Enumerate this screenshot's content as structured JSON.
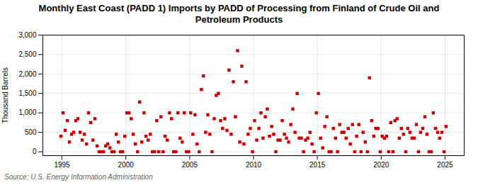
{
  "chart_data": {
    "type": "scatter",
    "title": "Monthly East Coast (PADD 1) Imports by PADD of Processing from Finland of Crude Oil and\nPetroleum Products",
    "ylabel": "Thousand Barrels",
    "source": "Source: U.S. Energy Information Administration",
    "color": "#cc0000",
    "marker": "square",
    "grid": true,
    "xlim": [
      1993.5,
      2026.5
    ],
    "ylim": [
      -100,
      3000
    ],
    "xticks": [
      1995,
      2000,
      2005,
      2010,
      2015,
      2020,
      2025
    ],
    "yticks": [
      0,
      500,
      {
        "value": 1000,
        "label": "1,000"
      },
      {
        "value": 1500,
        "label": "1,500"
      },
      {
        "value": 2000,
        "label": "2,000"
      },
      {
        "value": 2500,
        "label": "2,500"
      },
      {
        "value": 3000,
        "label": "3,000"
      }
    ],
    "x": [
      1994.92,
      1995.08,
      1995.25,
      1995.42,
      1995.58,
      1995.75,
      1995.92,
      1996.08,
      1996.25,
      1996.42,
      1996.58,
      1996.75,
      1996.92,
      1997.08,
      1997.25,
      1997.42,
      1997.58,
      1997.75,
      1997.92,
      1998.08,
      1998.25,
      1998.42,
      1998.58,
      1998.75,
      1998.92,
      1999.08,
      1999.25,
      1999.42,
      1999.58,
      1999.75,
      1999.92,
      2000.08,
      2000.25,
      2000.42,
      2000.58,
      2000.75,
      2000.92,
      2001.08,
      2001.25,
      2001.42,
      2001.58,
      2001.75,
      2001.92,
      2002.08,
      2002.25,
      2002.42,
      2002.58,
      2002.75,
      2002.92,
      2003.08,
      2003.25,
      2003.42,
      2003.58,
      2003.75,
      2003.92,
      2004.08,
      2004.25,
      2004.42,
      2004.58,
      2004.75,
      2004.92,
      2005.08,
      2005.25,
      2005.42,
      2005.58,
      2005.75,
      2005.92,
      2006.08,
      2006.25,
      2006.42,
      2006.58,
      2006.75,
      2006.92,
      2007.08,
      2007.25,
      2007.42,
      2007.58,
      2007.75,
      2007.92,
      2008.08,
      2008.25,
      2008.42,
      2008.58,
      2008.75,
      2008.92,
      2009.08,
      2009.25,
      2009.42,
      2009.58,
      2009.75,
      2009.92,
      2010.08,
      2010.25,
      2010.42,
      2010.58,
      2010.75,
      2010.92,
      2011.08,
      2011.25,
      2011.42,
      2011.58,
      2011.75,
      2011.92,
      2012.08,
      2012.25,
      2012.42,
      2012.58,
      2012.75,
      2012.92,
      2013.08,
      2013.25,
      2013.42,
      2013.58,
      2013.75,
      2013.92,
      2014.08,
      2014.25,
      2014.42,
      2014.58,
      2014.75,
      2014.92,
      2015.08,
      2015.25,
      2015.42,
      2015.58,
      2015.75,
      2015.92,
      2016.08,
      2016.25,
      2016.42,
      2016.58,
      2016.75,
      2016.92,
      2017.08,
      2017.25,
      2017.42,
      2017.58,
      2017.75,
      2017.92,
      2018.08,
      2018.25,
      2018.42,
      2018.58,
      2018.75,
      2018.92,
      2019.08,
      2019.25,
      2019.42,
      2019.58,
      2019.75,
      2019.92,
      2020.08,
      2020.25,
      2020.42,
      2020.58,
      2020.75,
      2020.92,
      2021.08,
      2021.25,
      2021.42,
      2021.58,
      2021.75,
      2021.92,
      2022.08,
      2022.25,
      2022.42,
      2022.58,
      2022.75,
      2022.92,
      2023.08,
      2023.25,
      2023.42,
      2023.58,
      2023.75,
      2023.92,
      2024.08,
      2024.25,
      2024.42,
      2024.58,
      2024.75,
      2024.92,
      2025.08
    ],
    "values": [
      400,
      1000,
      550,
      800,
      250,
      450,
      500,
      800,
      850,
      500,
      300,
      450,
      200,
      1000,
      750,
      300,
      850,
      150,
      0,
      0,
      0,
      150,
      200,
      100,
      0,
      0,
      450,
      250,
      0,
      0,
      400,
      1000,
      1000,
      850,
      450,
      200,
      0,
      1280,
      250,
      1000,
      400,
      300,
      450,
      0,
      0,
      800,
      0,
      900,
      0,
      400,
      300,
      1000,
      850,
      0,
      0,
      1000,
      350,
      250,
      1000,
      0,
      0,
      1000,
      450,
      950,
      200,
      0,
      1600,
      1950,
      500,
      950,
      450,
      0,
      850,
      1450,
      1500,
      800,
      600,
      850,
      550,
      2100,
      450,
      1800,
      900,
      2600,
      250,
      2200,
      200,
      1800,
      450,
      600,
      0,
      800,
      300,
      600,
      1000,
      350,
      900,
      1100,
      400,
      650,
      450,
      0,
      300,
      300,
      800,
      450,
      350,
      250,
      700,
      1100,
      500,
      1500,
      350,
      350,
      0,
      300,
      350,
      500,
      200,
      0,
      1000,
      1500,
      350,
      100,
      650,
      900,
      0,
      0,
      600,
      350,
      0,
      700,
      500,
      500,
      350,
      600,
      200,
      700,
      0,
      400,
      700,
      0,
      500,
      250,
      0,
      1900,
      800,
      400,
      600,
      600,
      0,
      400,
      350,
      400,
      0,
      750,
      0,
      800,
      850,
      350,
      600,
      450,
      0,
      600,
      500,
      350,
      350,
      700,
      0,
      500,
      600,
      900,
      450,
      0,
      0,
      1000,
      600,
      500,
      350,
      500,
      0,
      650
    ]
  }
}
